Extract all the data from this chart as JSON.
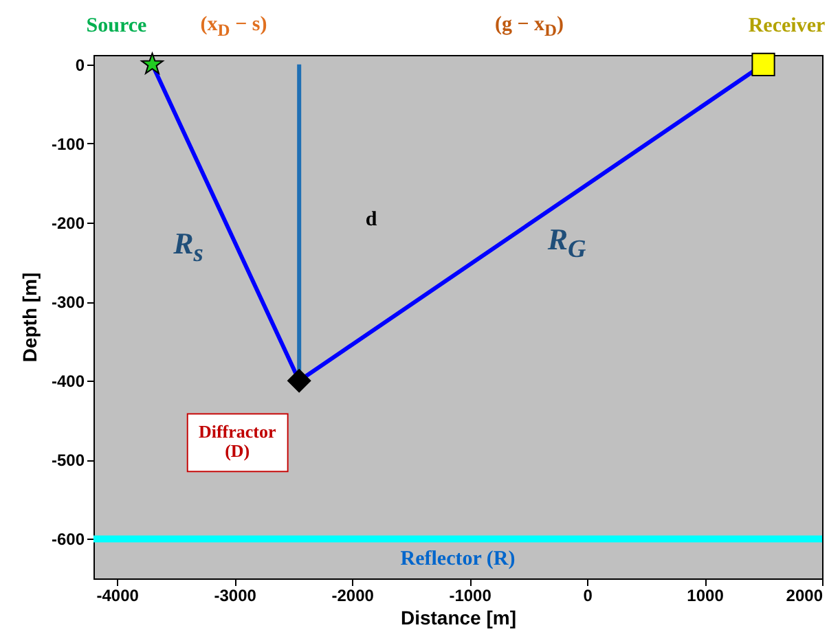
{
  "chart_data": {
    "type": "line",
    "xlabel": "Distance [m]",
    "ylabel": "Depth [m]",
    "xlim": [
      -4200,
      2000
    ],
    "xticks": [
      {
        "value": -4000,
        "label": "-4000"
      },
      {
        "value": -3000,
        "label": "-3000"
      },
      {
        "value": -2000,
        "label": "-2000"
      },
      {
        "value": -1000,
        "label": "-1000"
      },
      0,
      1000,
      2000
    ],
    "ylim": [
      -650,
      12
    ],
    "yticks": [
      0,
      {
        "value": -100,
        "label": "-100"
      },
      {
        "value": -200,
        "label": "-200"
      },
      {
        "value": -300,
        "label": "-300"
      },
      {
        "value": -400,
        "label": "-400"
      },
      {
        "value": -500,
        "label": "-500"
      },
      {
        "value": -600,
        "label": "-600"
      }
    ],
    "grid": false,
    "series": [
      {
        "type": "line",
        "color": "#0000ff",
        "x": [
          -3700,
          -2450,
          1500
        ],
        "values": [
          0,
          -400,
          0
        ],
        "marker": "none",
        "line_style": "solid"
      },
      {
        "type": "line",
        "color": "#1f6fb4",
        "x": [
          -2450,
          -2450
        ],
        "values": [
          0,
          -400
        ],
        "marker": "none",
        "line_style": "solid"
      },
      {
        "type": "scatter",
        "color": "#22cc22",
        "x": [
          -3700
        ],
        "values": [
          0
        ],
        "marker": "star"
      },
      {
        "type": "scatter",
        "color": "#ffff00",
        "x": [
          1500
        ],
        "values": [
          0
        ],
        "marker": "square"
      },
      {
        "type": "scatter",
        "color": "#000000",
        "x": [
          -2450
        ],
        "values": [
          -400
        ],
        "marker": "diamond"
      }
    ],
    "ref_lines": [
      {
        "axis": "y",
        "value": -600,
        "label": "Reflector (R)",
        "color": "#00ffff"
      }
    ],
    "annotations": [
      {
        "text": "Source",
        "x": -3700,
        "y": 0
      },
      {
        "text": "Receiver",
        "x": 1500,
        "y": 0
      },
      {
        "text": "Diffractor\n(D)",
        "x": -2450,
        "y": -400
      },
      {
        "text": "R$_{s}$",
        "x": -3100,
        "y": -200
      },
      {
        "text": "R$_{G}$",
        "x": -500,
        "y": -200
      },
      "d",
      "(x$_{D}$ − s)",
      "(g − x$_{D}$)"
    ]
  }
}
